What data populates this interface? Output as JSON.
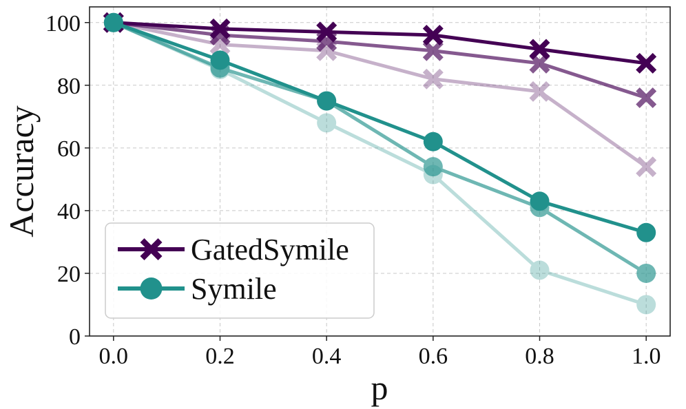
{
  "chart_data": {
    "type": "line",
    "xlabel": "p",
    "ylabel": "Accuracy",
    "x": [
      0.0,
      0.2,
      0.4,
      0.6,
      0.8,
      1.0
    ],
    "xticks": [
      "0.0",
      "0.2",
      "0.4",
      "0.6",
      "0.8",
      "1.0"
    ],
    "yticks": [
      "0",
      "20",
      "40",
      "60",
      "80",
      "100"
    ],
    "xlim": [
      -0.045,
      1.045
    ],
    "ylim": [
      0,
      105
    ],
    "grid": true,
    "legend_position": "lower-left",
    "legend": [
      {
        "label": "GatedSymile",
        "marker": "x",
        "color": "#440154"
      },
      {
        "label": "Symile",
        "marker": "circle",
        "color": "#21918c"
      }
    ],
    "series": [
      {
        "name": "GatedSymile",
        "marker": "x",
        "color": "#440154",
        "opacity": 0.3,
        "values": [
          100,
          93,
          91,
          82,
          78,
          54
        ]
      },
      {
        "name": "GatedSymile",
        "marker": "x",
        "color": "#440154",
        "opacity": 0.65,
        "values": [
          100,
          96,
          94,
          91,
          87,
          76
        ]
      },
      {
        "name": "GatedSymile",
        "marker": "x",
        "color": "#440154",
        "opacity": 1.0,
        "values": [
          100,
          98,
          97,
          96,
          91.5,
          87
        ]
      },
      {
        "name": "Symile",
        "marker": "circle",
        "color": "#21918c",
        "opacity": 0.3,
        "values": [
          100,
          85,
          68,
          51.5,
          21,
          10
        ]
      },
      {
        "name": "Symile",
        "marker": "circle",
        "color": "#21918c",
        "opacity": 0.65,
        "values": [
          100,
          85.5,
          75,
          54,
          41,
          20
        ]
      },
      {
        "name": "Symile",
        "marker": "circle",
        "color": "#21918c",
        "opacity": 1.0,
        "values": [
          100,
          88,
          75,
          62,
          43,
          33
        ]
      }
    ]
  }
}
